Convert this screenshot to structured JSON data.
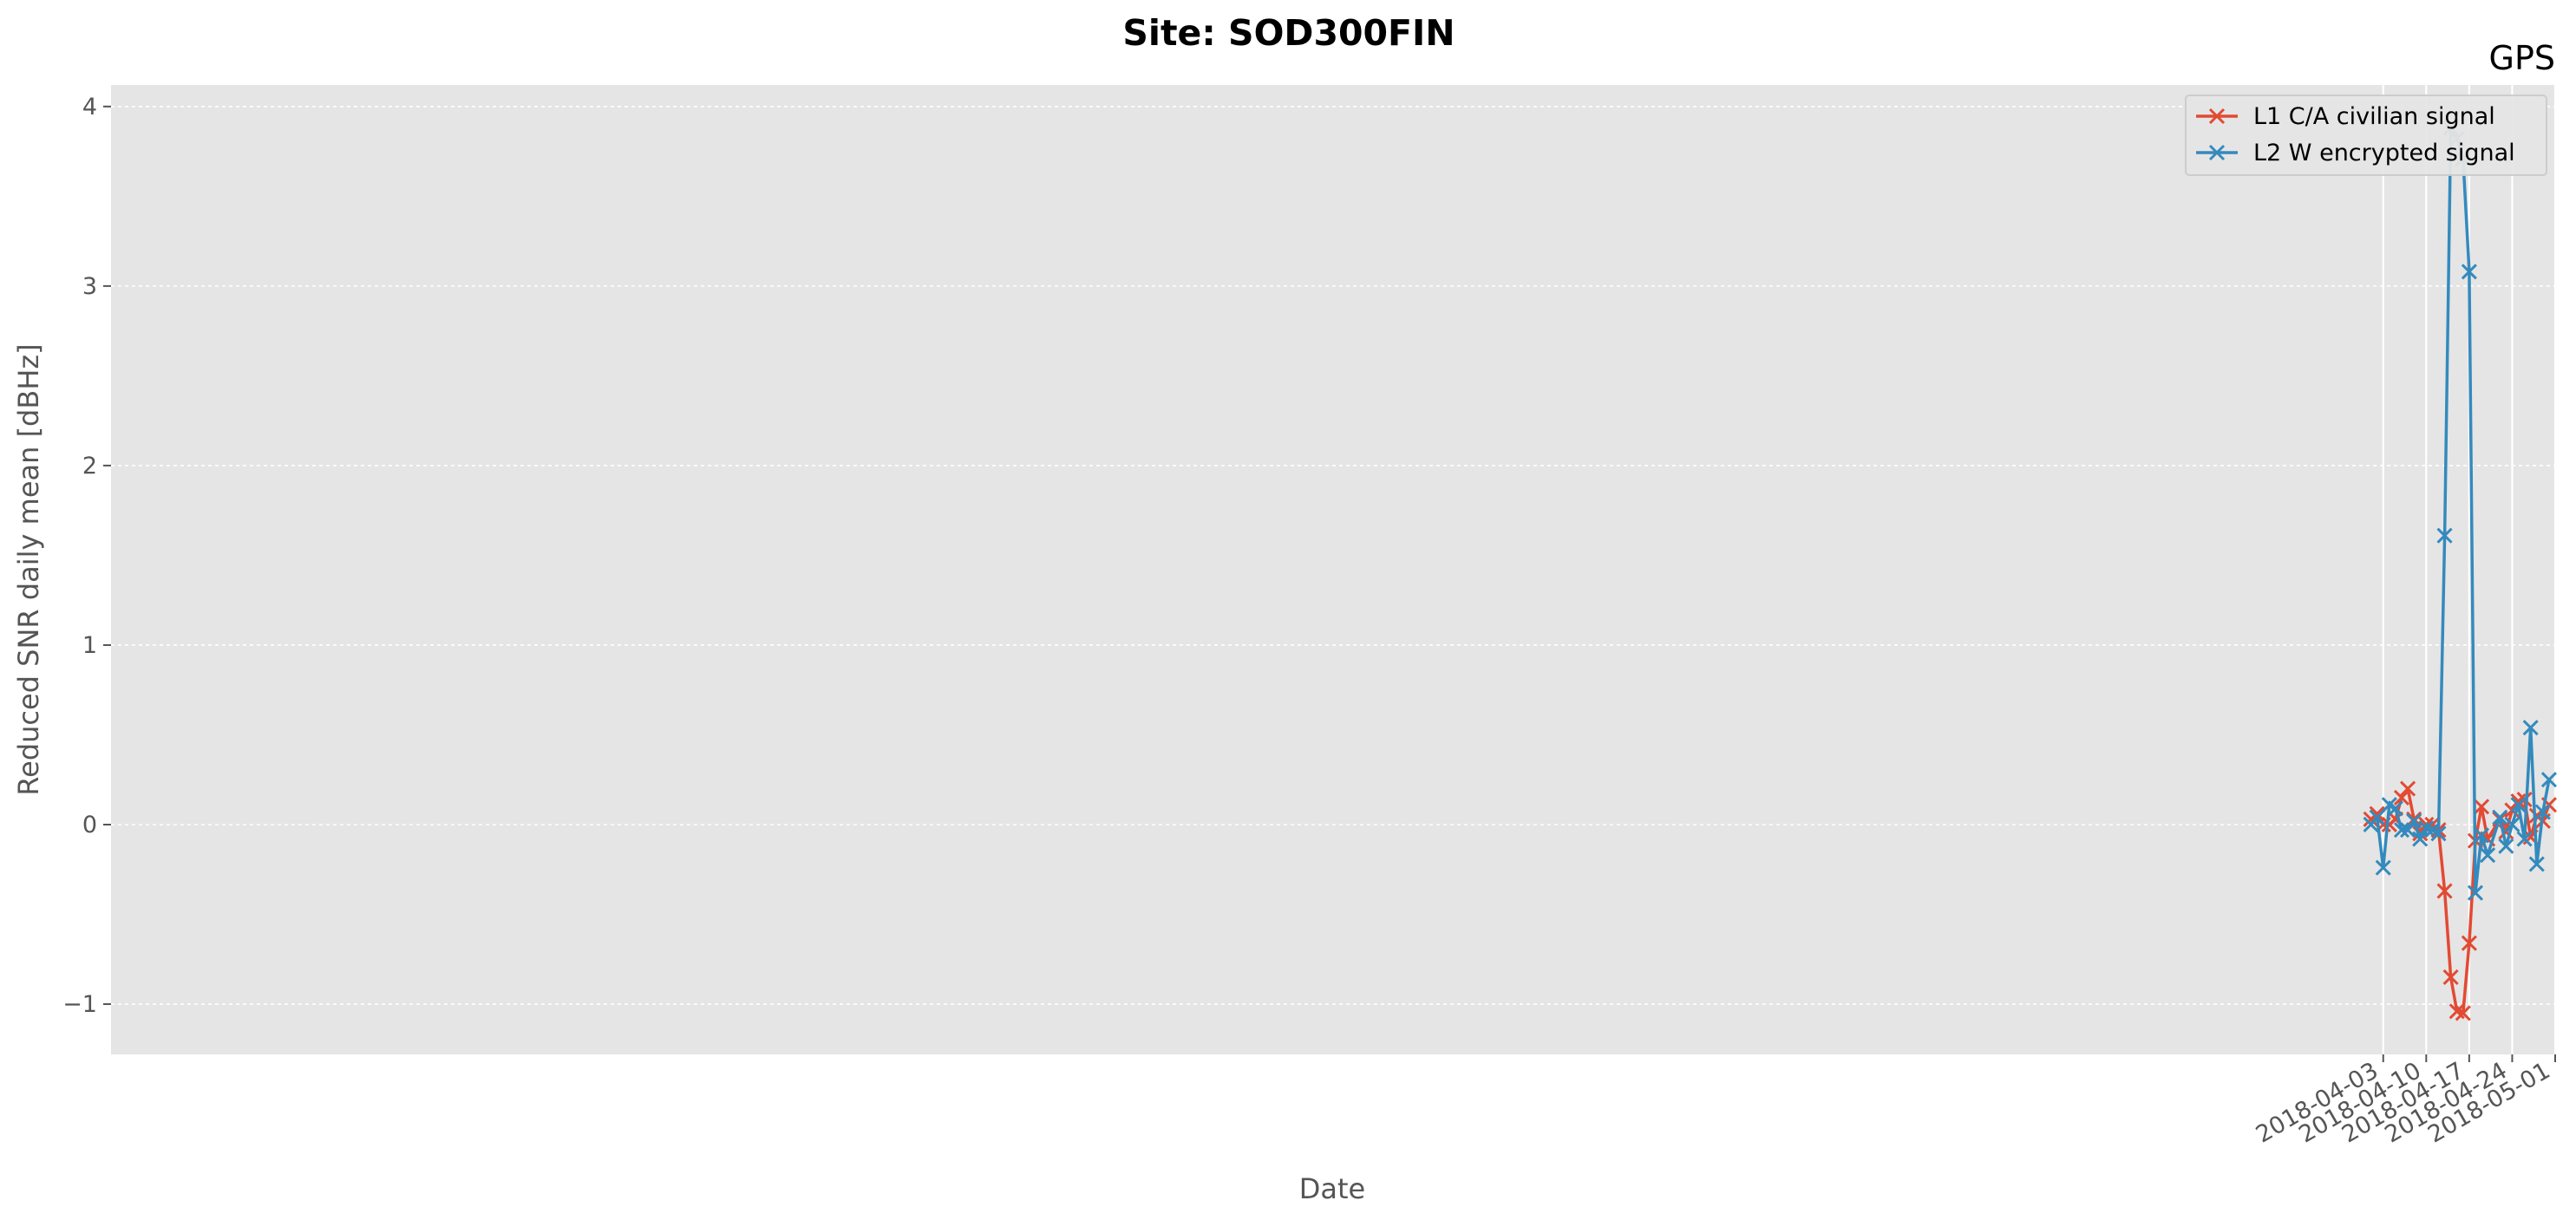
{
  "chart_data": {
    "type": "line",
    "title": "Site: SOD300FIN",
    "corner_label": "GPS",
    "xlabel": "Date",
    "ylabel": "Reduced SNR daily mean [dBHz]",
    "x_range": [
      "2017-03-29T00:00:00",
      "2018-05-01T00:00:00"
    ],
    "ylim": [
      -1.28,
      4.12
    ],
    "x_ticks": [
      "2018-04-03",
      "2018-04-10",
      "2018-04-17",
      "2018-04-24",
      "2018-05-01"
    ],
    "y_ticks": [
      -1,
      0,
      1,
      2,
      3,
      4
    ],
    "y_tick_labels": [
      "−1",
      "0",
      "1",
      "2",
      "3",
      "4"
    ],
    "grid": true,
    "legend_position": "top-right",
    "x": [
      "2018-04-01",
      "2018-04-02",
      "2018-04-03",
      "2018-04-04",
      "2018-04-05",
      "2018-04-06",
      "2018-04-07",
      "2018-04-08",
      "2018-04-09",
      "2018-04-10",
      "2018-04-11",
      "2018-04-12",
      "2018-04-13",
      "2018-04-14",
      "2018-04-15",
      "2018-04-16",
      "2018-04-17",
      "2018-04-18",
      "2018-04-19",
      "2018-04-20",
      "2018-04-22",
      "2018-04-23",
      "2018-04-24",
      "2018-04-25",
      "2018-04-26",
      "2018-04-27",
      "2018-04-28",
      "2018-04-29",
      "2018-04-30"
    ],
    "series": [
      {
        "name": "L1 C/A civilian signal",
        "color": "#E24A33",
        "values": [
          0.03,
          0.06,
          0.0,
          0.0,
          0.03,
          0.15,
          0.2,
          0.03,
          -0.05,
          0.0,
          0.0,
          -0.03,
          -0.37,
          -0.85,
          -1.04,
          -1.05,
          -0.66,
          -0.09,
          0.1,
          -0.08,
          0.03,
          -0.04,
          0.08,
          0.13,
          0.14,
          -0.07,
          0.05,
          0.02,
          0.11
        ]
      },
      {
        "name": "L2 W encrypted signal",
        "color": "#348ABD",
        "values": [
          0.0,
          0.04,
          -0.24,
          0.11,
          0.09,
          -0.03,
          -0.03,
          0.02,
          -0.08,
          -0.02,
          -0.03,
          -0.05,
          1.61,
          3.88,
          3.82,
          3.71,
          3.08,
          -0.38,
          -0.06,
          -0.17,
          0.04,
          -0.12,
          0.0,
          0.11,
          -0.08,
          0.54,
          -0.22,
          0.07,
          0.25
        ]
      }
    ]
  }
}
